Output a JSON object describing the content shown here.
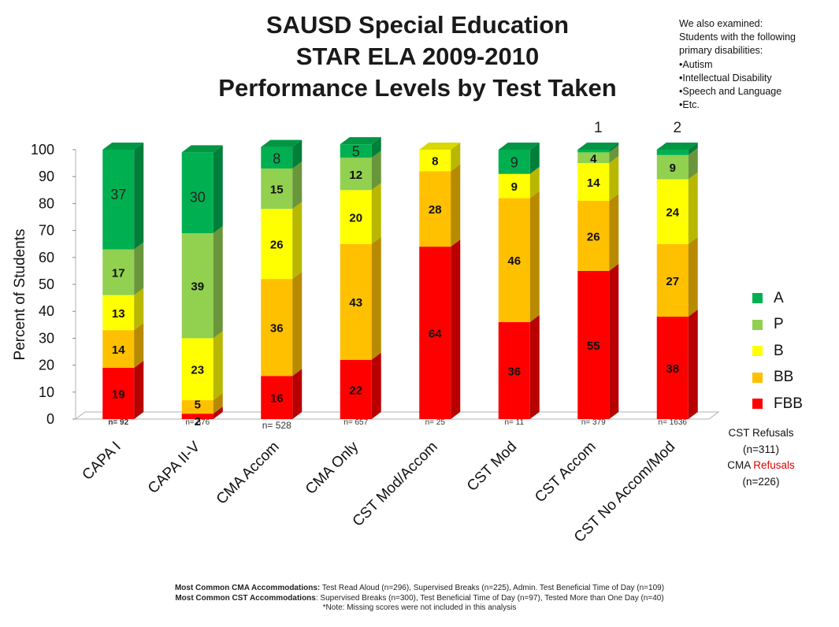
{
  "title": {
    "line1": "SAUSD Special Education",
    "line2": "STAR ELA 2009-2010",
    "line3": "Performance Levels by Test Taken"
  },
  "note": {
    "line1": "We also examined:",
    "line2": "Students with the following",
    "line3": "primary disabilities:",
    "items": [
      "•Autism",
      "•Intellectual Disability",
      "•Speech and Language",
      "•Etc."
    ]
  },
  "refusals": {
    "cst": "CST Refusals",
    "cst_n": "(n=311)",
    "cma_prefix": "CMA ",
    "cma_word": "Refusals",
    "cma_n": "(n=226)"
  },
  "footer": {
    "line1_bold": "Most Common CMA Accommodations:",
    "line1_rest": "  Test Read Aloud (n=296), Supervised Breaks (n=225), Admin. Test Beneficial Time of Day (n=109)",
    "line2_bold": "Most Common CST Accommodations",
    "line2_rest": ": Supervised Breaks (n=300), Test Beneficial Time of Day (n=97), Tested More than One Day (n=40)",
    "line3": "*Note:  Missing scores were not included in this analysis"
  },
  "colors": {
    "A": "#00b050",
    "P": "#92d050",
    "B": "#ffff00",
    "BB": "#ffc000",
    "FBB": "#ff0000"
  },
  "chart_data": {
    "type": "bar",
    "stacked": true,
    "ylabel": "Percent of Students",
    "ylim": [
      0,
      100
    ],
    "yticks": [
      0,
      10,
      20,
      30,
      40,
      50,
      60,
      70,
      80,
      90,
      100
    ],
    "legend_position": "right",
    "categories": [
      "CAPA I",
      "CAPA II-V",
      "CMA Accom",
      "CMA Only",
      "CST Mod/Accom",
      "CST Mod",
      "CST Accom",
      "CST No Accom/Mod"
    ],
    "n_labels": [
      "n= 92",
      "n= 376",
      "n= 528",
      "n= 657",
      "n= 25",
      "n= 11",
      "n= 379",
      "n= 1636"
    ],
    "series": [
      {
        "name": "FBB",
        "values": [
          19,
          2,
          16,
          22,
          64,
          36,
          55,
          38
        ]
      },
      {
        "name": "BB",
        "values": [
          14,
          5,
          36,
          43,
          28,
          46,
          26,
          27
        ]
      },
      {
        "name": "B",
        "values": [
          13,
          23,
          26,
          20,
          8,
          9,
          14,
          24
        ]
      },
      {
        "name": "P",
        "values": [
          17,
          39,
          15,
          12,
          0,
          0,
          4,
          9
        ]
      },
      {
        "name": "A",
        "values": [
          37,
          30,
          8,
          5,
          0,
          9,
          1,
          2
        ]
      }
    ],
    "legend_order": [
      "A",
      "P",
      "B",
      "BB",
      "FBB"
    ]
  }
}
